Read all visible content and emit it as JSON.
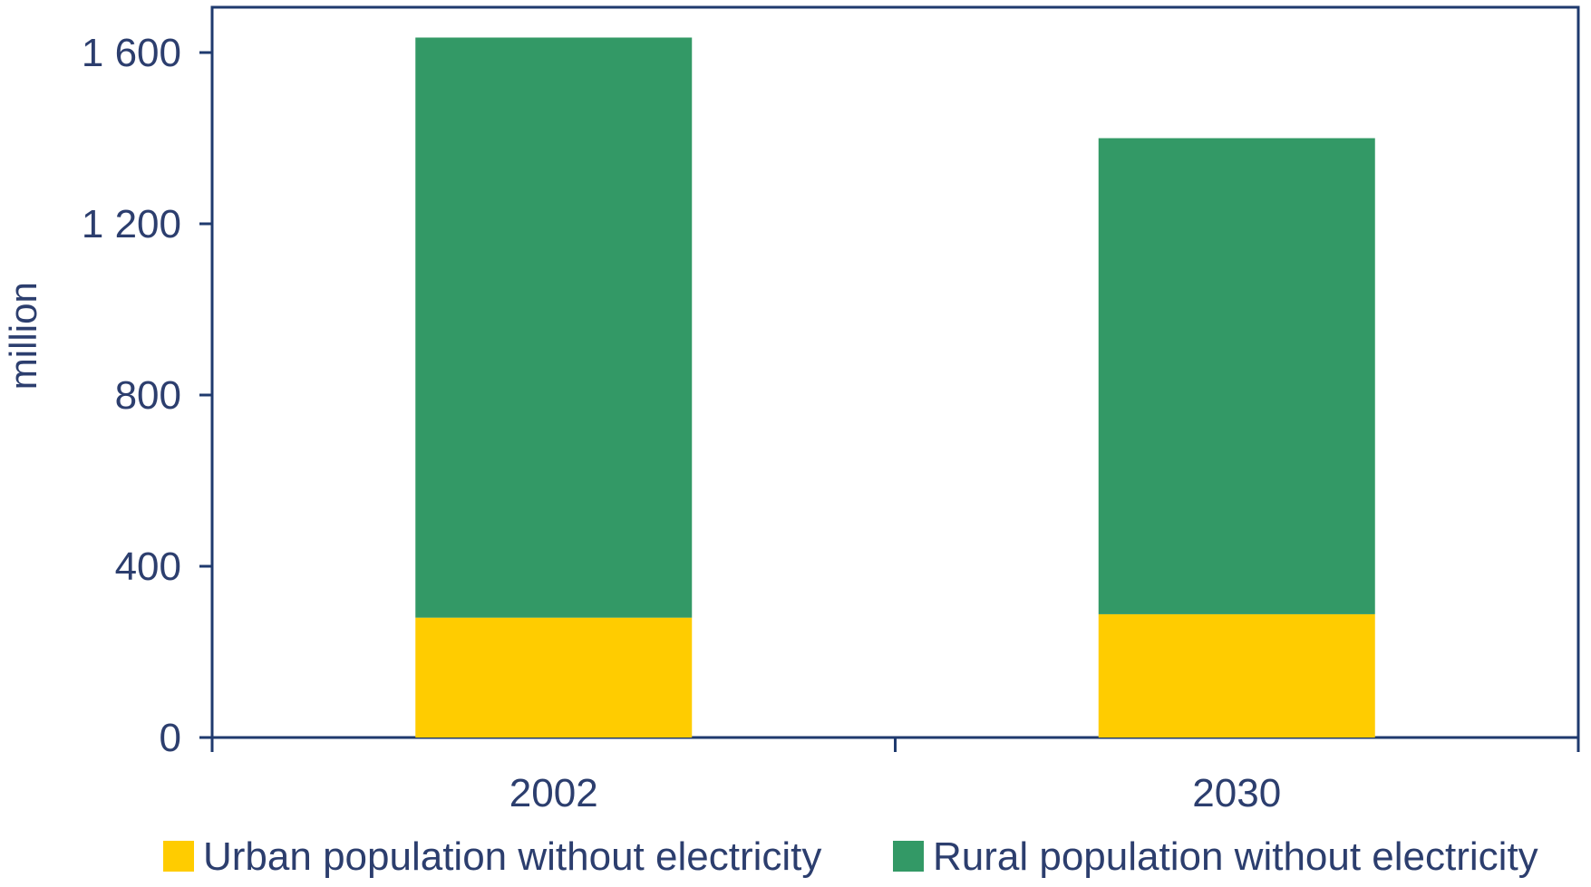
{
  "chart_data": {
    "type": "bar",
    "stacked": true,
    "categories": [
      "2002",
      "2030"
    ],
    "series": [
      {
        "name": "Urban population without electricity",
        "values": [
          280,
          288
        ],
        "color": "#FFCC00"
      },
      {
        "name": "Rural population without electricity",
        "values": [
          1355,
          1112
        ],
        "color": "#339966"
      }
    ],
    "ylabel": "million",
    "ylim": [
      0,
      1600
    ],
    "yticks": [
      0,
      400,
      800,
      1200,
      1600
    ],
    "ytick_labels": [
      "0",
      "400",
      "800",
      "1 200",
      "1 600"
    ],
    "legend_position": "bottom",
    "grid": false,
    "axis_color": "#1F3A6E",
    "text_color": "#2C3E6E"
  }
}
